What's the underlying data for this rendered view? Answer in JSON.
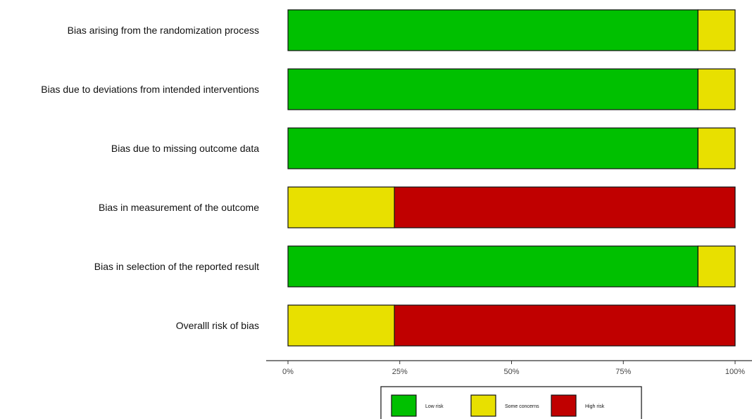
{
  "chart_data": {
    "type": "bar",
    "orientation": "horizontal",
    "stacked": true,
    "categories": [
      "Bias arising from the randomization process",
      "Bias due to deviations from intended interventions",
      "Bias due to missing outcome data",
      "Bias in measurement of the outcome",
      "Bias in selection of the reported result",
      "Overalll risk of bias"
    ],
    "series": [
      {
        "name": "Low risk",
        "color": "#00c000",
        "values": [
          91.7,
          91.7,
          91.7,
          0,
          91.7,
          0
        ]
      },
      {
        "name": "Some concerns",
        "color": "#e8e000",
        "values": [
          8.3,
          8.3,
          8.3,
          23.8,
          8.3,
          23.8
        ]
      },
      {
        "name": "High risk",
        "color": "#c00000",
        "values": [
          0,
          0,
          0,
          76.2,
          0,
          76.2
        ]
      }
    ],
    "x_ticks": [
      "0%",
      "25%",
      "50%",
      "75%",
      "100%"
    ],
    "xlim": [
      0,
      100
    ],
    "legend_position": "bottom",
    "grid": false
  }
}
